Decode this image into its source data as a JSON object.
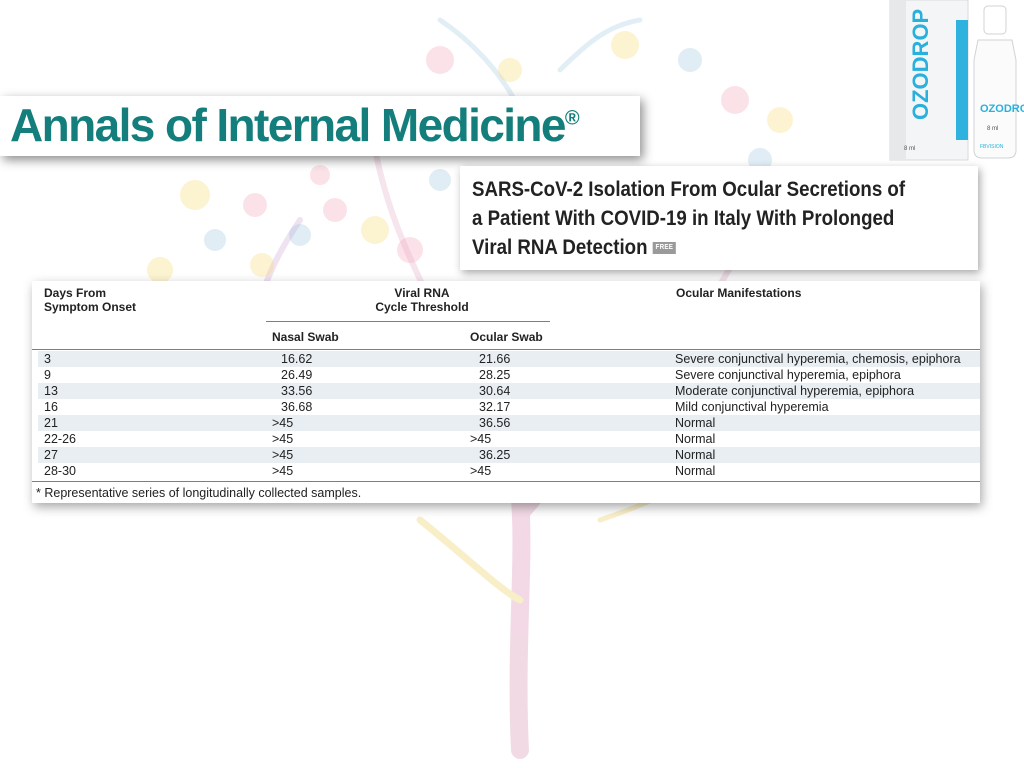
{
  "journal": {
    "name": "Annals of Internal Medicine",
    "registered_mark": "®"
  },
  "product": {
    "brand": "OZODROP",
    "volume": "8 ml",
    "maker": "FBVISION",
    "color": "#29b0dc"
  },
  "article": {
    "title": "SARS-CoV-2 Isolation From Ocular Secretions of a Patient With COVID-19 in Italy With Prolonged Viral RNA Detection",
    "badge": "FREE"
  },
  "table": {
    "headers": {
      "days": "Days From\nSymptom Onset",
      "viral": "Viral RNA\nCycle Threshold",
      "nasal": "Nasal Swab",
      "ocular": "Ocular Swab",
      "manifestations": "Ocular Manifestations"
    },
    "rows": [
      {
        "days": "3",
        "nasal": "16.62",
        "ocular": "21.66",
        "manifestations": "Severe conjunctival hyperemia, chemosis, epiphora"
      },
      {
        "days": "9",
        "nasal": "26.49",
        "ocular": "28.25",
        "manifestations": "Severe conjunctival hyperemia, epiphora"
      },
      {
        "days": "13",
        "nasal": "33.56",
        "ocular": "30.64",
        "manifestations": "Moderate conjunctival hyperemia, epiphora"
      },
      {
        "days": "16",
        "nasal": "36.68",
        "ocular": "32.17",
        "manifestations": "Mild conjunctival hyperemia"
      },
      {
        "days": "21",
        "nasal": ">45",
        "ocular": "36.56",
        "manifestations": "Normal"
      },
      {
        "days": "22-26",
        "nasal": ">45",
        "ocular": ">45",
        "manifestations": "Normal"
      },
      {
        "days": "27",
        "nasal": ">45",
        "ocular": "36.25",
        "manifestations": "Normal"
      },
      {
        "days": "28-30",
        "nasal": ">45",
        "ocular": ">45",
        "manifestations": "Normal"
      }
    ],
    "footnote": "* Representative series of longitudinally collected samples."
  },
  "colors": {
    "journal_teal": "#137e7c",
    "row_alt": "#e8eef2",
    "rule": "#5a8e8a"
  }
}
